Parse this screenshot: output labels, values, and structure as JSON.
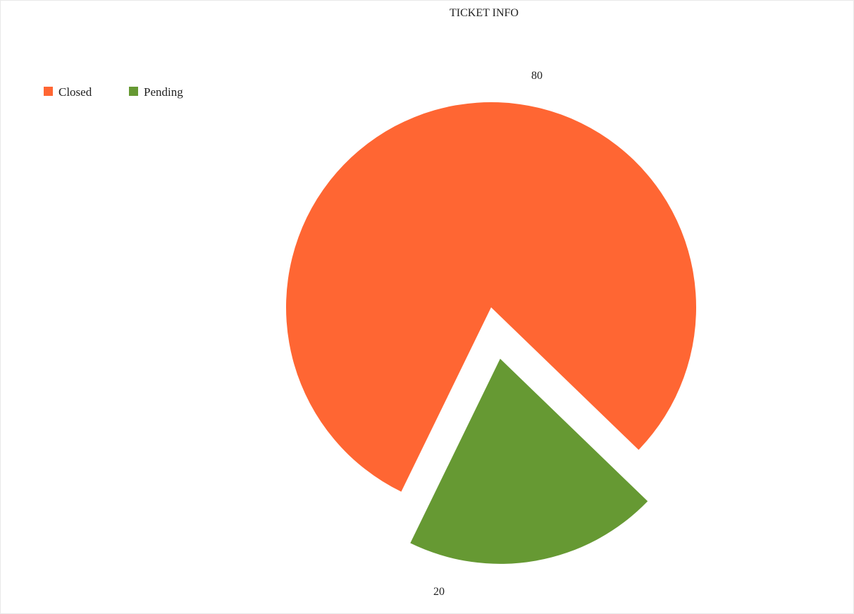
{
  "chart_data": {
    "type": "pie",
    "title": "TICKET INFO",
    "legend_position": "top-left",
    "slices": [
      {
        "label": "Closed",
        "value": 80,
        "value_label": "80",
        "color": "#ff6633",
        "exploded": false
      },
      {
        "label": "Pending",
        "value": 20,
        "value_label": "20",
        "color": "#669933",
        "exploded": true
      }
    ]
  }
}
